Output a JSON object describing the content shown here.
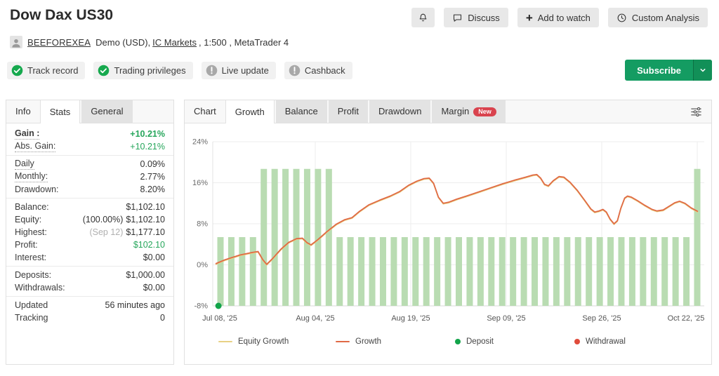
{
  "header": {
    "title": "Dow Dax US30",
    "account": {
      "username": "BEEFOREXEA",
      "details_prefix": "Demo (USD), ",
      "broker_link": "IC Markets",
      "details_suffix": " , 1:500 , MetaTrader 4"
    },
    "badges": [
      {
        "label": "Track record",
        "status": "ok"
      },
      {
        "label": "Trading privileges",
        "status": "ok"
      },
      {
        "label": "Live update",
        "status": "muted"
      },
      {
        "label": "Cashback",
        "status": "muted"
      }
    ],
    "actions": {
      "discuss": "Discuss",
      "add_watch": "Add to watch",
      "custom_analysis": "Custom Analysis"
    },
    "subscribe_label": "Subscribe"
  },
  "stats_panel": {
    "tabs": [
      {
        "label": "Info",
        "state": "plain"
      },
      {
        "label": "Stats",
        "state": "active"
      },
      {
        "label": "General",
        "state": "gray"
      }
    ],
    "rows": [
      {
        "label": "Gain :",
        "value": "+10.21%",
        "label_bold": true,
        "dotted": true,
        "green": true,
        "value_bold": true
      },
      {
        "label": "Abs. Gain:",
        "value": "+10.21%",
        "dotted": true,
        "green": true
      },
      {
        "divider": true
      },
      {
        "label": "Daily",
        "value": "0.09%",
        "dotted": true
      },
      {
        "label": "Monthly:",
        "value": "2.77%",
        "dotted": true
      },
      {
        "label": "Drawdown:",
        "value": "8.20%"
      },
      {
        "divider": true
      },
      {
        "label": "Balance:",
        "value": "$1,102.10"
      },
      {
        "label": "Equity:",
        "value": "$1,102.10",
        "prefix": "(100.00%)"
      },
      {
        "label": "Highest:",
        "value": "$1,177.10",
        "prefix": "(Sep 12)",
        "prefix_muted": true
      },
      {
        "label": "Profit:",
        "value": "$102.10",
        "green": true
      },
      {
        "label": "Interest:",
        "value": "$0.00"
      },
      {
        "divider": true
      },
      {
        "label": "Deposits:",
        "value": "$1,000.00"
      },
      {
        "label": "Withdrawals:",
        "value": "$0.00"
      },
      {
        "divider": true
      },
      {
        "label": "Updated",
        "value": "56 minutes ago"
      },
      {
        "label": "Tracking",
        "value": "0"
      }
    ]
  },
  "chart_panel": {
    "tabs": [
      {
        "label": "Chart",
        "state": "plain"
      },
      {
        "label": "Growth",
        "state": "active"
      },
      {
        "label": "Balance",
        "state": "gray"
      },
      {
        "label": "Profit",
        "state": "gray"
      },
      {
        "label": "Drawdown",
        "state": "gray"
      },
      {
        "label": "Margin",
        "state": "gray",
        "badge": "New"
      }
    ],
    "chart_data": {
      "type": "line",
      "title": "Growth",
      "y_ticks": [
        "24%",
        "16%",
        "8%",
        "0%",
        "-8%"
      ],
      "y_values": [
        24,
        16,
        8,
        0,
        -8
      ],
      "ylim": [
        -8,
        24
      ],
      "x_labels": [
        "Jul 08, '25",
        "Aug 04, '25",
        "Aug 19, '25",
        "Sep 09, '25",
        "Sep 26, '25",
        "Oct 22, '25"
      ],
      "grid": true,
      "bars": {
        "name": "Trading activity",
        "color": "#b9dcb2",
        "values": [
          5.4,
          5.4,
          5.4,
          5.4,
          18.7,
          18.7,
          18.7,
          18.7,
          18.7,
          18.7,
          18.7,
          5.4,
          5.4,
          5.4,
          5.4,
          5.4,
          5.4,
          5.4,
          5.4,
          5.4,
          5.4,
          5.4,
          5.4,
          5.4,
          5.4,
          5.4,
          5.4,
          5.4,
          5.4,
          5.4,
          5.4,
          5.4,
          5.4,
          5.4,
          5.4,
          5.4,
          5.4,
          5.4,
          5.4,
          5.4,
          5.4,
          5.4,
          5.4,
          5.4,
          18.7
        ]
      },
      "series": [
        {
          "name": "Growth",
          "color": "#e06a45",
          "points": [
            [
              0.0,
              0.2
            ],
            [
              0.02,
              1.0
            ],
            [
              0.05,
              1.9
            ],
            [
              0.075,
              2.4
            ],
            [
              0.088,
              2.6
            ],
            [
              0.098,
              1.0
            ],
            [
              0.106,
              0.1
            ],
            [
              0.118,
              1.2
            ],
            [
              0.135,
              3.0
            ],
            [
              0.152,
              4.4
            ],
            [
              0.168,
              5.1
            ],
            [
              0.18,
              5.2
            ],
            [
              0.19,
              4.3
            ],
            [
              0.198,
              3.9
            ],
            [
              0.212,
              4.9
            ],
            [
              0.23,
              6.4
            ],
            [
              0.25,
              7.9
            ],
            [
              0.268,
              8.8
            ],
            [
              0.283,
              9.2
            ],
            [
              0.298,
              10.4
            ],
            [
              0.318,
              11.7
            ],
            [
              0.34,
              12.6
            ],
            [
              0.362,
              13.4
            ],
            [
              0.382,
              14.3
            ],
            [
              0.4,
              15.5
            ],
            [
              0.417,
              16.3
            ],
            [
              0.432,
              16.8
            ],
            [
              0.443,
              16.9
            ],
            [
              0.452,
              15.9
            ],
            [
              0.462,
              13.2
            ],
            [
              0.472,
              12.0
            ],
            [
              0.483,
              12.2
            ],
            [
              0.5,
              12.8
            ],
            [
              0.52,
              13.4
            ],
            [
              0.545,
              14.2
            ],
            [
              0.57,
              15.0
            ],
            [
              0.595,
              15.8
            ],
            [
              0.62,
              16.5
            ],
            [
              0.643,
              17.1
            ],
            [
              0.658,
              17.5
            ],
            [
              0.666,
              17.6
            ],
            [
              0.674,
              16.9
            ],
            [
              0.682,
              15.7
            ],
            [
              0.69,
              15.4
            ],
            [
              0.7,
              16.4
            ],
            [
              0.712,
              17.2
            ],
            [
              0.722,
              17.1
            ],
            [
              0.735,
              16.1
            ],
            [
              0.75,
              14.5
            ],
            [
              0.765,
              12.6
            ],
            [
              0.778,
              10.9
            ],
            [
              0.786,
              10.3
            ],
            [
              0.795,
              10.5
            ],
            [
              0.803,
              10.8
            ],
            [
              0.81,
              10.3
            ],
            [
              0.818,
              8.9
            ],
            [
              0.826,
              8.0
            ],
            [
              0.833,
              8.6
            ],
            [
              0.84,
              11.0
            ],
            [
              0.848,
              13.0
            ],
            [
              0.854,
              13.4
            ],
            [
              0.862,
              13.2
            ],
            [
              0.875,
              12.5
            ],
            [
              0.89,
              11.6
            ],
            [
              0.905,
              10.8
            ],
            [
              0.915,
              10.5
            ],
            [
              0.928,
              10.7
            ],
            [
              0.94,
              11.4
            ],
            [
              0.952,
              12.1
            ],
            [
              0.962,
              12.4
            ],
            [
              0.973,
              12.0
            ],
            [
              0.986,
              11.1
            ],
            [
              1.0,
              10.4
            ]
          ]
        },
        {
          "name": "Equity Growth",
          "color": "#e8d184",
          "coincides_with": "Growth"
        }
      ],
      "markers": {
        "deposits": [
          {
            "x_frac": 0.006,
            "y": -8
          }
        ],
        "withdrawals": []
      },
      "legend": [
        {
          "label": "Equity Growth",
          "type": "line",
          "color": "#e8d184"
        },
        {
          "label": "Growth",
          "type": "line",
          "color": "#e06a45"
        },
        {
          "label": "Deposit",
          "type": "dot",
          "color": "#12a44a"
        },
        {
          "label": "Withdrawal",
          "type": "dot",
          "color": "#e04b3b"
        }
      ]
    }
  },
  "colors": {
    "accent_green": "#26a65b",
    "subscribe_green": "#149c62",
    "badge_ok": "#16a94e",
    "badge_muted": "#a8a8a8",
    "new_badge_red": "#d9434e",
    "bar_green": "#b9dcb2",
    "growth_line": "#e06a45"
  }
}
